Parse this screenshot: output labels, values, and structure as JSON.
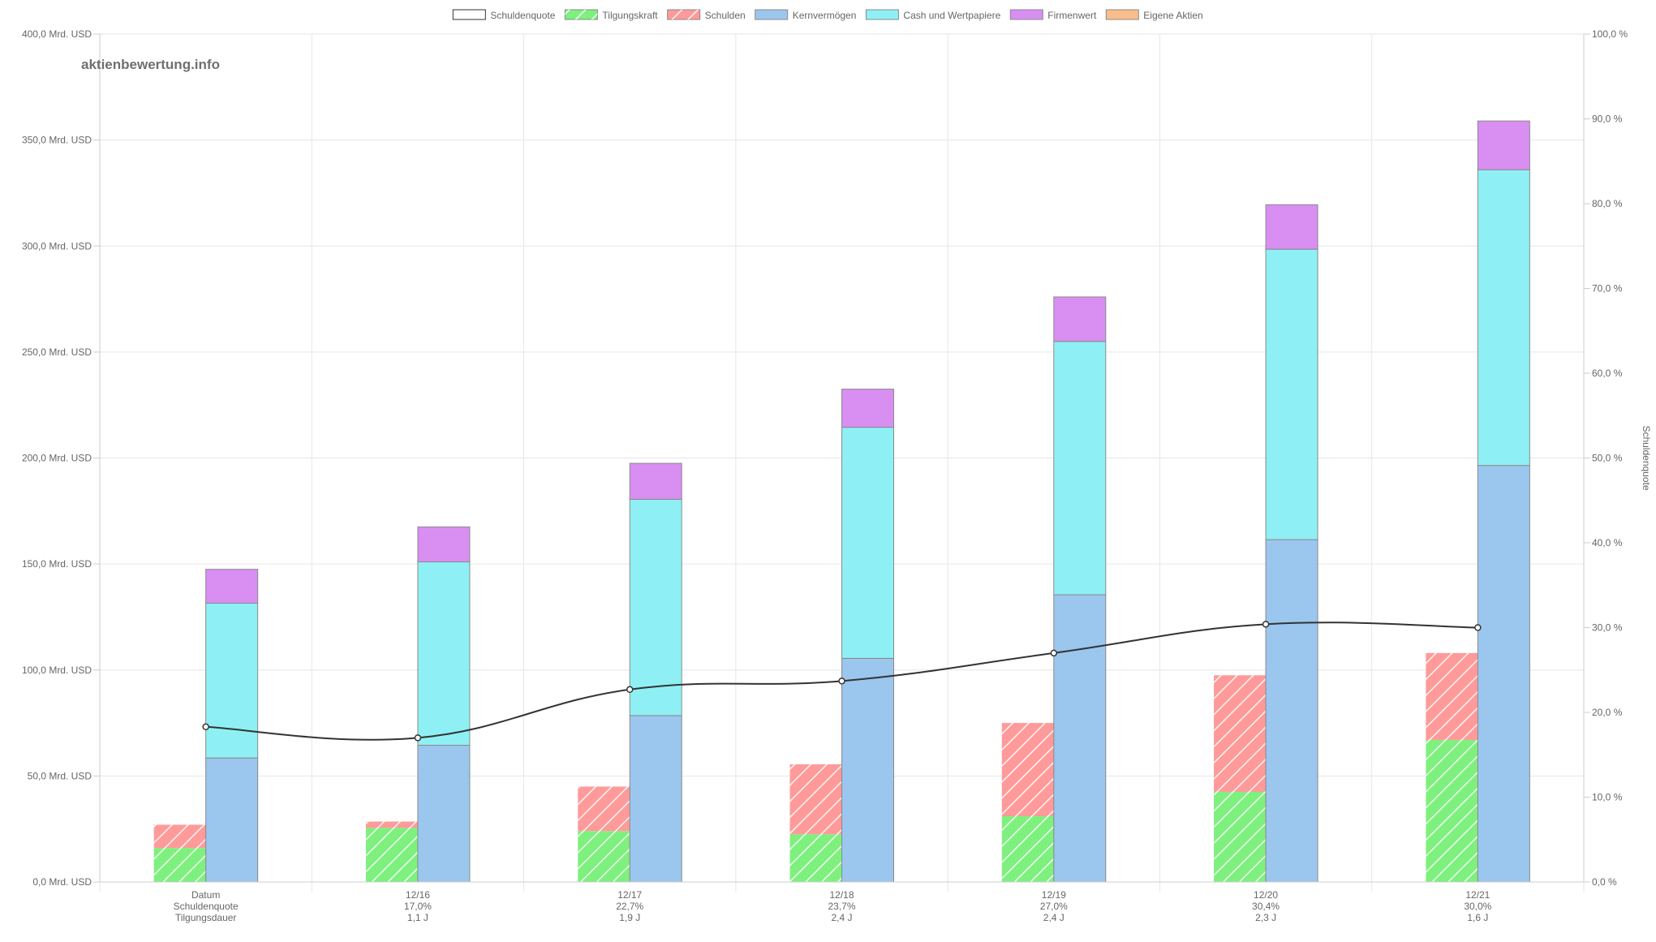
{
  "watermark": "aktienbewertung.info",
  "colors": {
    "tilgungskraft": "#7ef07e",
    "schulden": "#ff9a9a",
    "kernvermoegen": "#9bc6ee",
    "cash": "#8ef0f4",
    "firmenwert": "#d98ef2",
    "eigene_aktien": "#f9bd8b",
    "schuldenquote_line": "#333333",
    "grid": "#e6e6e6",
    "bar_border": "#8a8a8a"
  },
  "legend": [
    {
      "key": "schuldenquote",
      "label": "Schuldenquote"
    },
    {
      "key": "tilgungskraft",
      "label": "Tilgungskraft"
    },
    {
      "key": "schulden",
      "label": "Schulden"
    },
    {
      "key": "kernvermoegen",
      "label": "Kernvermögen"
    },
    {
      "key": "cash",
      "label": "Cash und Wertpapiere"
    },
    {
      "key": "firmenwert",
      "label": "Firmenwert"
    },
    {
      "key": "eigene_aktien",
      "label": "Eigene Aktien"
    }
  ],
  "chart_data": {
    "type": "bar",
    "categories": [
      "Datum",
      "12/16",
      "12/17",
      "12/18",
      "12/19",
      "12/20",
      "12/21"
    ],
    "x_label_rows": [
      [
        "Datum",
        "Schuldenquote",
        "Tilgungsdauer"
      ],
      [
        "12/16",
        "17,0%",
        "1,1 J"
      ],
      [
        "12/17",
        "22,7%",
        "1,9 J"
      ],
      [
        "12/18",
        "23,7%",
        "2,4 J"
      ],
      [
        "12/19",
        "27,0%",
        "2,4 J"
      ],
      [
        "12/20",
        "30,4%",
        "2,3 J"
      ],
      [
        "12/21",
        "30,0%",
        "1,6 J"
      ]
    ],
    "left_stack": {
      "tilgungskraft": [
        16,
        25.5,
        24,
        22.5,
        31,
        42.5,
        67
      ],
      "schulden": [
        11,
        3,
        21,
        33,
        44,
        55,
        41
      ]
    },
    "right_stack": {
      "kernvermoegen": [
        58.5,
        64.5,
        78.5,
        105.5,
        135.5,
        161.5,
        196.5
      ],
      "cash": [
        73,
        86.5,
        102,
        109,
        119.5,
        137,
        139.5
      ],
      "firmenwert": [
        16,
        16.5,
        17,
        18,
        21,
        21,
        23
      ]
    },
    "schuldenquote": [
      18.3,
      17.0,
      22.7,
      23.7,
      27.0,
      30.4,
      30.0
    ],
    "ylim": [
      0,
      400
    ],
    "y2lim": [
      0,
      100
    ],
    "y_ticks": [
      "0,0 Mrd. USD",
      "50,0 Mrd. USD",
      "100,0 Mrd. USD",
      "150,0 Mrd. USD",
      "200,0 Mrd. USD",
      "250,0 Mrd. USD",
      "300,0 Mrd. USD",
      "350,0 Mrd. USD",
      "400,0 Mrd. USD"
    ],
    "y2_ticks": [
      "0,0 %",
      "10,0 %",
      "20,0 %",
      "30,0 %",
      "40,0 %",
      "50,0 %",
      "60,0 %",
      "70,0 %",
      "80,0 %",
      "90,0 %",
      "100,0 %"
    ],
    "y2label": "Schuldenquote",
    "grid": true,
    "legend_position": "top-center"
  }
}
